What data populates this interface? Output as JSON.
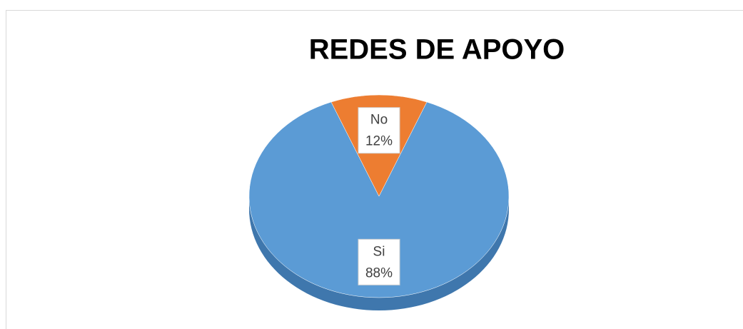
{
  "chart_data": {
    "type": "pie",
    "title": "REDES DE APOYO",
    "categories": [
      "Si",
      "No"
    ],
    "values": [
      88,
      12
    ],
    "value_labels": [
      "88%",
      "12%"
    ],
    "colors": [
      "#5b9bd5",
      "#ed7d31"
    ]
  }
}
